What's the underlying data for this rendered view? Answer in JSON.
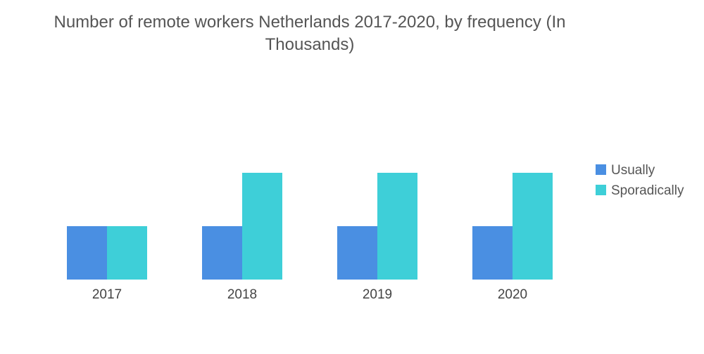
{
  "chart_data": {
    "type": "bar",
    "title": "Number of remote workers Netherlands 2017-2020, by frequency (In Thousands)",
    "categories": [
      "2017",
      "2018",
      "2019",
      "2020"
    ],
    "series": [
      {
        "name": "Usually",
        "color": "#4a8fe2",
        "values": [
          1,
          1,
          1,
          1
        ]
      },
      {
        "name": "Sporadically",
        "color": "#3ecfd8",
        "values": [
          1,
          2,
          2,
          2
        ]
      }
    ],
    "ylim": [
      0,
      2
    ],
    "xlabel": "",
    "ylabel": "",
    "grid": false,
    "legend_position": "right"
  }
}
